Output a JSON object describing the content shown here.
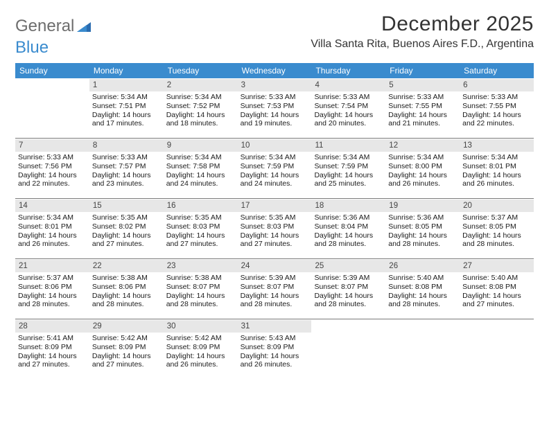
{
  "logo": {
    "text1": "General",
    "text2": "Blue"
  },
  "title": "December 2025",
  "location": "Villa Santa Rita, Buenos Aires F.D., Argentina",
  "colors": {
    "header_bar": "#3a8bce",
    "daynum_bg": "#e7e7e7",
    "week_divider": "#7a7a7a",
    "logo_gray": "#6d6d6d",
    "logo_blue": "#3a8bce",
    "text": "#222222",
    "bg": "#ffffff"
  },
  "days_of_week": [
    "Sunday",
    "Monday",
    "Tuesday",
    "Wednesday",
    "Thursday",
    "Friday",
    "Saturday"
  ],
  "weeks": [
    [
      {
        "n": "",
        "sunrise": "",
        "sunset": "",
        "dl1": "",
        "dl2": ""
      },
      {
        "n": "1",
        "sunrise": "Sunrise: 5:34 AM",
        "sunset": "Sunset: 7:51 PM",
        "dl1": "Daylight: 14 hours",
        "dl2": "and 17 minutes."
      },
      {
        "n": "2",
        "sunrise": "Sunrise: 5:34 AM",
        "sunset": "Sunset: 7:52 PM",
        "dl1": "Daylight: 14 hours",
        "dl2": "and 18 minutes."
      },
      {
        "n": "3",
        "sunrise": "Sunrise: 5:33 AM",
        "sunset": "Sunset: 7:53 PM",
        "dl1": "Daylight: 14 hours",
        "dl2": "and 19 minutes."
      },
      {
        "n": "4",
        "sunrise": "Sunrise: 5:33 AM",
        "sunset": "Sunset: 7:54 PM",
        "dl1": "Daylight: 14 hours",
        "dl2": "and 20 minutes."
      },
      {
        "n": "5",
        "sunrise": "Sunrise: 5:33 AM",
        "sunset": "Sunset: 7:55 PM",
        "dl1": "Daylight: 14 hours",
        "dl2": "and 21 minutes."
      },
      {
        "n": "6",
        "sunrise": "Sunrise: 5:33 AM",
        "sunset": "Sunset: 7:55 PM",
        "dl1": "Daylight: 14 hours",
        "dl2": "and 22 minutes."
      }
    ],
    [
      {
        "n": "7",
        "sunrise": "Sunrise: 5:33 AM",
        "sunset": "Sunset: 7:56 PM",
        "dl1": "Daylight: 14 hours",
        "dl2": "and 22 minutes."
      },
      {
        "n": "8",
        "sunrise": "Sunrise: 5:33 AM",
        "sunset": "Sunset: 7:57 PM",
        "dl1": "Daylight: 14 hours",
        "dl2": "and 23 minutes."
      },
      {
        "n": "9",
        "sunrise": "Sunrise: 5:34 AM",
        "sunset": "Sunset: 7:58 PM",
        "dl1": "Daylight: 14 hours",
        "dl2": "and 24 minutes."
      },
      {
        "n": "10",
        "sunrise": "Sunrise: 5:34 AM",
        "sunset": "Sunset: 7:59 PM",
        "dl1": "Daylight: 14 hours",
        "dl2": "and 24 minutes."
      },
      {
        "n": "11",
        "sunrise": "Sunrise: 5:34 AM",
        "sunset": "Sunset: 7:59 PM",
        "dl1": "Daylight: 14 hours",
        "dl2": "and 25 minutes."
      },
      {
        "n": "12",
        "sunrise": "Sunrise: 5:34 AM",
        "sunset": "Sunset: 8:00 PM",
        "dl1": "Daylight: 14 hours",
        "dl2": "and 26 minutes."
      },
      {
        "n": "13",
        "sunrise": "Sunrise: 5:34 AM",
        "sunset": "Sunset: 8:01 PM",
        "dl1": "Daylight: 14 hours",
        "dl2": "and 26 minutes."
      }
    ],
    [
      {
        "n": "14",
        "sunrise": "Sunrise: 5:34 AM",
        "sunset": "Sunset: 8:01 PM",
        "dl1": "Daylight: 14 hours",
        "dl2": "and 26 minutes."
      },
      {
        "n": "15",
        "sunrise": "Sunrise: 5:35 AM",
        "sunset": "Sunset: 8:02 PM",
        "dl1": "Daylight: 14 hours",
        "dl2": "and 27 minutes."
      },
      {
        "n": "16",
        "sunrise": "Sunrise: 5:35 AM",
        "sunset": "Sunset: 8:03 PM",
        "dl1": "Daylight: 14 hours",
        "dl2": "and 27 minutes."
      },
      {
        "n": "17",
        "sunrise": "Sunrise: 5:35 AM",
        "sunset": "Sunset: 8:03 PM",
        "dl1": "Daylight: 14 hours",
        "dl2": "and 27 minutes."
      },
      {
        "n": "18",
        "sunrise": "Sunrise: 5:36 AM",
        "sunset": "Sunset: 8:04 PM",
        "dl1": "Daylight: 14 hours",
        "dl2": "and 28 minutes."
      },
      {
        "n": "19",
        "sunrise": "Sunrise: 5:36 AM",
        "sunset": "Sunset: 8:05 PM",
        "dl1": "Daylight: 14 hours",
        "dl2": "and 28 minutes."
      },
      {
        "n": "20",
        "sunrise": "Sunrise: 5:37 AM",
        "sunset": "Sunset: 8:05 PM",
        "dl1": "Daylight: 14 hours",
        "dl2": "and 28 minutes."
      }
    ],
    [
      {
        "n": "21",
        "sunrise": "Sunrise: 5:37 AM",
        "sunset": "Sunset: 8:06 PM",
        "dl1": "Daylight: 14 hours",
        "dl2": "and 28 minutes."
      },
      {
        "n": "22",
        "sunrise": "Sunrise: 5:38 AM",
        "sunset": "Sunset: 8:06 PM",
        "dl1": "Daylight: 14 hours",
        "dl2": "and 28 minutes."
      },
      {
        "n": "23",
        "sunrise": "Sunrise: 5:38 AM",
        "sunset": "Sunset: 8:07 PM",
        "dl1": "Daylight: 14 hours",
        "dl2": "and 28 minutes."
      },
      {
        "n": "24",
        "sunrise": "Sunrise: 5:39 AM",
        "sunset": "Sunset: 8:07 PM",
        "dl1": "Daylight: 14 hours",
        "dl2": "and 28 minutes."
      },
      {
        "n": "25",
        "sunrise": "Sunrise: 5:39 AM",
        "sunset": "Sunset: 8:07 PM",
        "dl1": "Daylight: 14 hours",
        "dl2": "and 28 minutes."
      },
      {
        "n": "26",
        "sunrise": "Sunrise: 5:40 AM",
        "sunset": "Sunset: 8:08 PM",
        "dl1": "Daylight: 14 hours",
        "dl2": "and 28 minutes."
      },
      {
        "n": "27",
        "sunrise": "Sunrise: 5:40 AM",
        "sunset": "Sunset: 8:08 PM",
        "dl1": "Daylight: 14 hours",
        "dl2": "and 27 minutes."
      }
    ],
    [
      {
        "n": "28",
        "sunrise": "Sunrise: 5:41 AM",
        "sunset": "Sunset: 8:09 PM",
        "dl1": "Daylight: 14 hours",
        "dl2": "and 27 minutes."
      },
      {
        "n": "29",
        "sunrise": "Sunrise: 5:42 AM",
        "sunset": "Sunset: 8:09 PM",
        "dl1": "Daylight: 14 hours",
        "dl2": "and 27 minutes."
      },
      {
        "n": "30",
        "sunrise": "Sunrise: 5:42 AM",
        "sunset": "Sunset: 8:09 PM",
        "dl1": "Daylight: 14 hours",
        "dl2": "and 26 minutes."
      },
      {
        "n": "31",
        "sunrise": "Sunrise: 5:43 AM",
        "sunset": "Sunset: 8:09 PM",
        "dl1": "Daylight: 14 hours",
        "dl2": "and 26 minutes."
      },
      {
        "n": "",
        "sunrise": "",
        "sunset": "",
        "dl1": "",
        "dl2": ""
      },
      {
        "n": "",
        "sunrise": "",
        "sunset": "",
        "dl1": "",
        "dl2": ""
      },
      {
        "n": "",
        "sunrise": "",
        "sunset": "",
        "dl1": "",
        "dl2": ""
      }
    ]
  ]
}
